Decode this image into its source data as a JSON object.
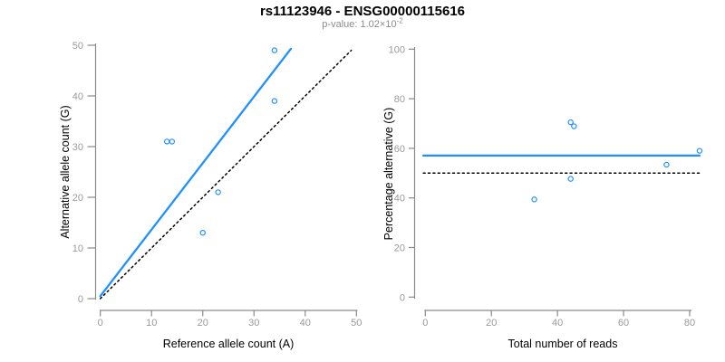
{
  "header": {
    "title": "rs11123946 - ENSG00000115616",
    "subtitle_prefix": "p-value: ",
    "pvalue_base": "1.02×10",
    "pvalue_exponent": "-2"
  },
  "colors": {
    "accent_blue": "#1E90FF",
    "axis_gray": "#8a8a8a",
    "tick_label_gray": "#9a9a9a",
    "axis_title_black": "#000000",
    "dotted_black": "#000000",
    "background": "#ffffff"
  },
  "chart_data": [
    {
      "type": "scatter",
      "panel": "left",
      "xlabel": "Reference allele count (A)",
      "ylabel": "Alternative allele count (G)",
      "xlim": [
        0,
        50
      ],
      "ylim": [
        0,
        50
      ],
      "xticks": [
        0,
        10,
        20,
        30,
        40,
        50
      ],
      "yticks": [
        0,
        10,
        20,
        30,
        40,
        50
      ],
      "grid": false,
      "marker": "open-circle",
      "points": [
        [
          34,
          49
        ],
        [
          34,
          39
        ],
        [
          13,
          31
        ],
        [
          14,
          31
        ],
        [
          23,
          21
        ],
        [
          20,
          13
        ]
      ],
      "lines": [
        {
          "name": "regression-line",
          "style": "solid",
          "color_key": "accent_blue",
          "from": [
            0,
            0.5
          ],
          "to": [
            37.2,
            49.3
          ]
        },
        {
          "name": "identity-line",
          "style": "dotted",
          "color_key": "dotted_black",
          "from": [
            0,
            0
          ],
          "to": [
            49,
            49
          ]
        }
      ]
    },
    {
      "type": "scatter",
      "panel": "right",
      "xlabel": "Total number of reads",
      "ylabel": "Percentage alternative (G)",
      "xlim": [
        0,
        83
      ],
      "ylim": [
        0,
        100
      ],
      "xticks": [
        0,
        20,
        40,
        60,
        80
      ],
      "yticks": [
        0,
        20,
        40,
        60,
        80,
        100
      ],
      "grid": false,
      "marker": "open-circle",
      "points": [
        [
          44,
          70.5
        ],
        [
          45,
          68.9
        ],
        [
          83,
          59
        ],
        [
          73,
          53.4
        ],
        [
          44,
          47.7
        ],
        [
          33,
          39.4
        ]
      ],
      "lines": [
        {
          "name": "mean-percentage-line",
          "style": "solid",
          "color_key": "accent_blue",
          "from": [
            -0.6,
            57.1
          ],
          "to": [
            83,
            57.1
          ]
        },
        {
          "name": "fifty-percent-line",
          "style": "dotted",
          "color_key": "dotted_black",
          "from": [
            -0.6,
            50
          ],
          "to": [
            83,
            50
          ]
        }
      ]
    }
  ]
}
